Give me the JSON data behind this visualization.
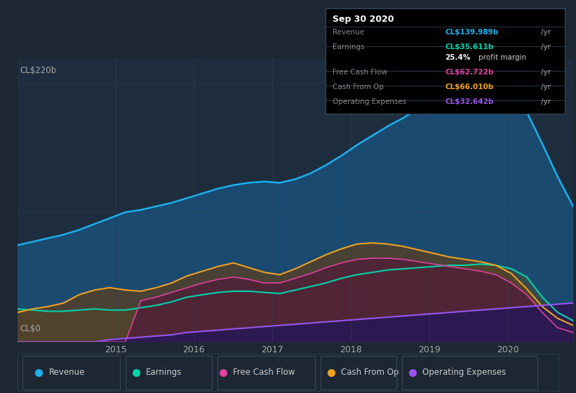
{
  "bg_color": "#1c2733",
  "plot_bg_color": "#1e2d3d",
  "grid_color": "#2a3f55",
  "ylabel_text": "CL$220b",
  "ylabel0_text": "CL$0",
  "x_labels": [
    "2015",
    "2016",
    "2017",
    "2018",
    "2019",
    "2020"
  ],
  "x_range": [
    2013.75,
    2020.83
  ],
  "y_range": [
    0,
    240
  ],
  "series_colors": {
    "revenue": "#1ab0f0",
    "earnings": "#00d4aa",
    "free_cash_flow": "#e040a0",
    "cash_from_op": "#f0a020",
    "op_expenses": "#9955ee"
  },
  "revenue": [
    82,
    85,
    88,
    91,
    95,
    100,
    105,
    110,
    112,
    115,
    118,
    122,
    126,
    130,
    133,
    135,
    136,
    135,
    138,
    143,
    150,
    158,
    167,
    175,
    183,
    190,
    198,
    205,
    210,
    215,
    218,
    220,
    215,
    195,
    168,
    140,
    115
  ],
  "earnings": [
    28,
    27,
    26,
    26,
    27,
    28,
    27,
    27,
    29,
    31,
    34,
    38,
    40,
    42,
    43,
    43,
    42,
    41,
    44,
    47,
    50,
    54,
    57,
    59,
    61,
    62,
    63,
    64,
    65,
    65,
    66,
    65,
    62,
    55,
    38,
    25,
    18
  ],
  "cash_from_op": [
    25,
    28,
    30,
    33,
    40,
    44,
    46,
    44,
    43,
    46,
    50,
    56,
    60,
    64,
    67,
    63,
    59,
    57,
    62,
    68,
    74,
    79,
    83,
    84,
    83,
    81,
    78,
    75,
    72,
    70,
    68,
    65,
    58,
    45,
    30,
    20,
    14
  ],
  "free_cash_flow": [
    0,
    0,
    0,
    0,
    0,
    0,
    0,
    0,
    35,
    38,
    42,
    46,
    50,
    53,
    55,
    53,
    50,
    50,
    54,
    58,
    63,
    67,
    70,
    71,
    71,
    70,
    68,
    66,
    64,
    62,
    60,
    57,
    50,
    40,
    25,
    12,
    8
  ],
  "op_expenses": [
    0,
    0,
    0,
    0,
    0,
    0,
    2,
    3,
    4,
    5,
    6,
    8,
    9,
    10,
    11,
    12,
    13,
    14,
    15,
    16,
    17,
    18,
    19,
    20,
    21,
    22,
    23,
    24,
    25,
    26,
    27,
    28,
    29,
    30,
    31,
    32,
    33
  ],
  "n_points": 37,
  "x_start": 2013.75,
  "x_end": 2020.83,
  "legend_items": [
    {
      "label": "Revenue",
      "color": "#1ab0f0"
    },
    {
      "label": "Earnings",
      "color": "#00d4aa"
    },
    {
      "label": "Free Cash Flow",
      "color": "#e040a0"
    },
    {
      "label": "Cash From Op",
      "color": "#f0a020"
    },
    {
      "label": "Operating Expenses",
      "color": "#9955ee"
    }
  ],
  "info_box": {
    "date": "Sep 30 2020",
    "rows": [
      {
        "label": "Revenue",
        "value": "CL$139.989b",
        "value_color": "#1ab0f0"
      },
      {
        "label": "Earnings",
        "value": "CL$35.611b",
        "value_color": "#00d4aa"
      },
      {
        "label": "",
        "value": "",
        "value_color": "#ffffff"
      },
      {
        "label": "Free Cash Flow",
        "value": "CL$62.722b",
        "value_color": "#e040a0"
      },
      {
        "label": "Cash From Op",
        "value": "CL$66.010b",
        "value_color": "#f0a020"
      },
      {
        "label": "Operating Expenses",
        "value": "CL$32.642b",
        "value_color": "#9955ee"
      }
    ]
  }
}
